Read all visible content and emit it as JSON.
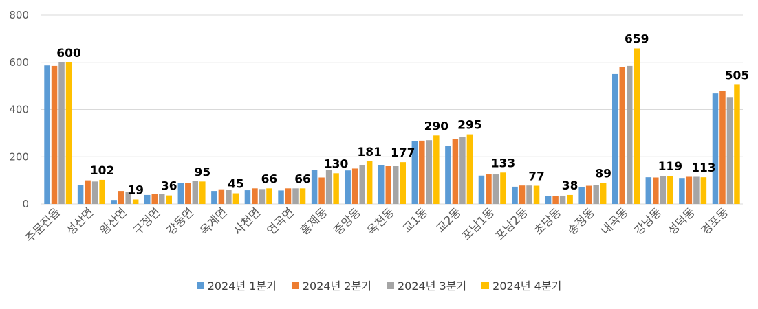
{
  "chart_data": {
    "type": "bar",
    "title": "",
    "xlabel": "",
    "ylabel": "",
    "ylim": [
      0,
      800
    ],
    "yticks": [
      "0",
      "200",
      "400",
      "600",
      "800"
    ],
    "grid": true,
    "legend_position": "bottom",
    "categories": [
      "주문진읍",
      "성산면",
      "왕산면",
      "구정면",
      "강동면",
      "옥계면",
      "사천면",
      "연곡면",
      "홍제동",
      "중앙동",
      "옥천동",
      "교1동",
      "교2동",
      "포남1동",
      "포남2동",
      "초당동",
      "송정동",
      "내곡동",
      "강남동",
      "성덕동",
      "경포동"
    ],
    "series": [
      {
        "name": "2024년 1분기",
        "color": "#5B9BD5",
        "values": [
          587,
          80,
          17,
          38,
          90,
          55,
          58,
          57,
          145,
          142,
          165,
          267,
          245,
          120,
          73,
          33,
          72,
          550,
          113,
          110,
          468
        ]
      },
      {
        "name": "2024년 2분기",
        "color": "#ED7D31",
        "values": [
          585,
          100,
          55,
          42,
          90,
          62,
          66,
          66,
          112,
          150,
          160,
          268,
          275,
          125,
          78,
          32,
          77,
          580,
          112,
          115,
          480
        ]
      },
      {
        "name": "2024년 3분기",
        "color": "#A5A5A5",
        "values": [
          602,
          95,
          52,
          42,
          96,
          60,
          63,
          66,
          145,
          165,
          160,
          270,
          283,
          125,
          78,
          35,
          80,
          585,
          118,
          115,
          453
        ]
      },
      {
        "name": "2024년 4분기",
        "color": "#FFC000",
        "values": [
          600,
          102,
          19,
          36,
          95,
          45,
          66,
          66,
          130,
          181,
          177,
          290,
          295,
          133,
          77,
          38,
          89,
          659,
          119,
          113,
          505
        ]
      }
    ],
    "data_labels": [
      "600",
      "102",
      "19",
      "36",
      "95",
      "45",
      "66",
      "66",
      "130",
      "181",
      "177",
      "290",
      "295",
      "133",
      "77",
      "38",
      "89",
      "659",
      "119",
      "113",
      "505"
    ]
  }
}
